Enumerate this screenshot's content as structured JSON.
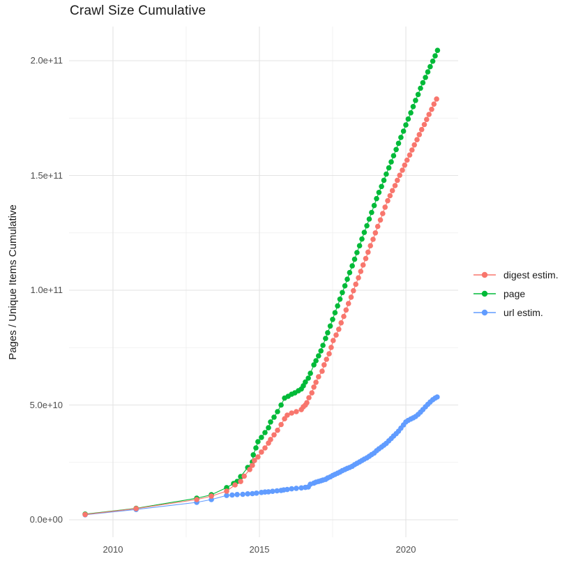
{
  "title": "Crawl Size Cumulative",
  "y_axis": {
    "title": "Pages / Unique Items Cumulative",
    "tick_labels": [
      "0.0e+00",
      "5.0e+10",
      "1.0e+11",
      "1.5e+11",
      "2.0e+11"
    ],
    "tick_values_billions": [
      0,
      50,
      100,
      150,
      200
    ]
  },
  "x_axis": {
    "tick_labels": [
      "2010",
      "2015",
      "2020"
    ],
    "tick_values": [
      2010,
      2015,
      2020
    ]
  },
  "legend": {
    "items": [
      {
        "label": "digest estim.",
        "color": "#F8766D",
        "series": "digest estim."
      },
      {
        "label": "page",
        "color": "#00BA38",
        "series": "page"
      },
      {
        "label": "url estim.",
        "color": "#619CFF",
        "series": "url estim."
      }
    ]
  },
  "chart_data": {
    "type": "line",
    "title": "Crawl Size Cumulative",
    "xlabel": "",
    "ylabel": "Pages / Unique Items Cumulative",
    "x_range": [
      2008.5,
      2021.8
    ],
    "y_range": [
      0,
      215000000000.0
    ],
    "value_scale": 1000000000.0,
    "grid": true,
    "legend_position": "right",
    "marker": "circle",
    "series": [
      {
        "name": "digest estim.",
        "color": "#F8766D",
        "points": [
          [
            2009.05,
            2.3
          ],
          [
            2010.79,
            4.9
          ],
          [
            2012.86,
            8.8
          ],
          [
            2013.36,
            10.3
          ],
          [
            2013.88,
            12.5
          ],
          [
            2014.17,
            15.2
          ],
          [
            2014.36,
            16.7
          ],
          [
            2014.48,
            19.0
          ],
          [
            2014.67,
            21.9
          ],
          [
            2014.76,
            23.7
          ],
          [
            2014.83,
            25.8
          ],
          [
            2014.95,
            27.4
          ],
          [
            2015.07,
            29.5
          ],
          [
            2015.19,
            31.3
          ],
          [
            2015.31,
            33.4
          ],
          [
            2015.38,
            35.0
          ],
          [
            2015.5,
            37.0
          ],
          [
            2015.62,
            39.0
          ],
          [
            2015.74,
            41.5
          ],
          [
            2015.86,
            44.0
          ],
          [
            2015.95,
            45.6
          ],
          [
            2016.1,
            46.5
          ],
          [
            2016.26,
            47.1
          ],
          [
            2016.43,
            48.0
          ],
          [
            2016.5,
            49.2
          ],
          [
            2016.57,
            50.0
          ],
          [
            2016.62,
            51.0
          ],
          [
            2016.69,
            53.2
          ],
          [
            2016.79,
            55.3
          ],
          [
            2016.86,
            57.8
          ],
          [
            2016.93,
            59.9
          ],
          [
            2017.02,
            62.3
          ],
          [
            2017.14,
            64.7
          ],
          [
            2017.21,
            67.5
          ],
          [
            2017.29,
            69.9
          ],
          [
            2017.38,
            72.3
          ],
          [
            2017.45,
            75.1
          ],
          [
            2017.52,
            78.1
          ],
          [
            2017.62,
            80.5
          ],
          [
            2017.71,
            83.0
          ],
          [
            2017.79,
            85.8
          ],
          [
            2017.88,
            88.6
          ],
          [
            2017.96,
            91.4
          ],
          [
            2018.04,
            94.2
          ],
          [
            2018.13,
            97.0
          ],
          [
            2018.21,
            99.8
          ],
          [
            2018.29,
            102.6
          ],
          [
            2018.38,
            105.4
          ],
          [
            2018.46,
            108.2
          ],
          [
            2018.54,
            111.0
          ],
          [
            2018.63,
            113.8
          ],
          [
            2018.71,
            116.6
          ],
          [
            2018.79,
            119.4
          ],
          [
            2018.88,
            122.2
          ],
          [
            2018.96,
            125.0
          ],
          [
            2019.04,
            127.8
          ],
          [
            2019.13,
            130.6
          ],
          [
            2019.21,
            133.4
          ],
          [
            2019.29,
            136.2
          ],
          [
            2019.38,
            139.0
          ],
          [
            2019.46,
            141.2
          ],
          [
            2019.54,
            143.4
          ],
          [
            2019.63,
            145.6
          ],
          [
            2019.71,
            147.9
          ],
          [
            2019.79,
            150.1
          ],
          [
            2019.88,
            152.3
          ],
          [
            2019.96,
            154.5
          ],
          [
            2020.04,
            156.7
          ],
          [
            2020.13,
            158.9
          ],
          [
            2020.21,
            161.1
          ],
          [
            2020.29,
            163.3
          ],
          [
            2020.38,
            165.6
          ],
          [
            2020.46,
            167.8
          ],
          [
            2020.54,
            170.0
          ],
          [
            2020.63,
            172.2
          ],
          [
            2020.71,
            174.4
          ],
          [
            2020.79,
            176.6
          ],
          [
            2020.88,
            178.8
          ],
          [
            2020.96,
            181.1
          ],
          [
            2021.05,
            183.3
          ]
        ]
      },
      {
        "name": "page",
        "color": "#00BA38",
        "points": [
          [
            2009.05,
            2.5
          ],
          [
            2010.79,
            5.0
          ],
          [
            2012.86,
            9.4
          ],
          [
            2013.36,
            10.9
          ],
          [
            2013.88,
            14.0
          ],
          [
            2014.12,
            15.8
          ],
          [
            2014.24,
            16.7
          ],
          [
            2014.36,
            18.8
          ],
          [
            2014.6,
            22.8
          ],
          [
            2014.76,
            25.2
          ],
          [
            2014.79,
            28.3
          ],
          [
            2014.88,
            31.3
          ],
          [
            2014.95,
            34.0
          ],
          [
            2015.07,
            35.9
          ],
          [
            2015.19,
            38.0
          ],
          [
            2015.31,
            40.1
          ],
          [
            2015.38,
            42.6
          ],
          [
            2015.5,
            44.7
          ],
          [
            2015.62,
            47.1
          ],
          [
            2015.74,
            50.0
          ],
          [
            2015.86,
            53.0
          ],
          [
            2015.98,
            53.8
          ],
          [
            2016.1,
            54.7
          ],
          [
            2016.21,
            55.3
          ],
          [
            2016.33,
            56.2
          ],
          [
            2016.43,
            57.0
          ],
          [
            2016.5,
            58.4
          ],
          [
            2016.57,
            60.0
          ],
          [
            2016.67,
            61.7
          ],
          [
            2016.74,
            63.8
          ],
          [
            2016.86,
            67.5
          ],
          [
            2016.93,
            69.3
          ],
          [
            2017.02,
            71.4
          ],
          [
            2017.1,
            73.6
          ],
          [
            2017.17,
            76.0
          ],
          [
            2017.26,
            79.0
          ],
          [
            2017.33,
            81.5
          ],
          [
            2017.42,
            84.4
          ],
          [
            2017.5,
            87.3
          ],
          [
            2017.58,
            90.2
          ],
          [
            2017.67,
            93.2
          ],
          [
            2017.75,
            96.1
          ],
          [
            2017.83,
            99.0
          ],
          [
            2017.92,
            101.9
          ],
          [
            2018.0,
            104.8
          ],
          [
            2018.08,
            107.7
          ],
          [
            2018.17,
            110.6
          ],
          [
            2018.25,
            113.5
          ],
          [
            2018.33,
            116.4
          ],
          [
            2018.42,
            119.4
          ],
          [
            2018.5,
            122.3
          ],
          [
            2018.58,
            125.2
          ],
          [
            2018.67,
            128.1
          ],
          [
            2018.75,
            131.0
          ],
          [
            2018.83,
            133.9
          ],
          [
            2018.92,
            136.9
          ],
          [
            2019.0,
            139.9
          ],
          [
            2019.08,
            142.6
          ],
          [
            2019.17,
            145.2
          ],
          [
            2019.25,
            147.9
          ],
          [
            2019.33,
            150.6
          ],
          [
            2019.42,
            153.3
          ],
          [
            2019.5,
            155.9
          ],
          [
            2019.58,
            158.6
          ],
          [
            2019.67,
            161.3
          ],
          [
            2019.75,
            164.0
          ],
          [
            2019.83,
            166.6
          ],
          [
            2019.92,
            169.3
          ],
          [
            2020.0,
            172.0
          ],
          [
            2020.08,
            174.6
          ],
          [
            2020.17,
            177.3
          ],
          [
            2020.25,
            180.0
          ],
          [
            2020.33,
            182.7
          ],
          [
            2020.42,
            185.3
          ],
          [
            2020.5,
            188.0
          ],
          [
            2020.58,
            190.4
          ],
          [
            2020.67,
            192.7
          ],
          [
            2020.75,
            195.1
          ],
          [
            2020.83,
            197.4
          ],
          [
            2020.92,
            199.8
          ],
          [
            2021.0,
            202.1
          ],
          [
            2021.08,
            204.5
          ]
        ]
      },
      {
        "name": "url estim.",
        "color": "#619CFF",
        "points": [
          [
            2009.05,
            2.2
          ],
          [
            2010.79,
            4.5
          ],
          [
            2012.86,
            7.6
          ],
          [
            2013.36,
            8.8
          ],
          [
            2013.88,
            10.6
          ],
          [
            2014.07,
            10.8
          ],
          [
            2014.24,
            11.0
          ],
          [
            2014.43,
            11.1
          ],
          [
            2014.6,
            11.3
          ],
          [
            2014.76,
            11.4
          ],
          [
            2014.9,
            11.6
          ],
          [
            2015.07,
            11.9
          ],
          [
            2015.19,
            12.1
          ],
          [
            2015.31,
            12.2
          ],
          [
            2015.45,
            12.4
          ],
          [
            2015.6,
            12.6
          ],
          [
            2015.74,
            12.8
          ],
          [
            2015.83,
            13.0
          ],
          [
            2015.95,
            13.2
          ],
          [
            2016.1,
            13.5
          ],
          [
            2016.26,
            13.7
          ],
          [
            2016.43,
            13.9
          ],
          [
            2016.57,
            14.1
          ],
          [
            2016.67,
            14.3
          ],
          [
            2016.74,
            15.5
          ],
          [
            2016.86,
            16.0
          ],
          [
            2016.93,
            16.4
          ],
          [
            2017.02,
            16.7
          ],
          [
            2017.1,
            17.0
          ],
          [
            2017.17,
            17.3
          ],
          [
            2017.26,
            17.6
          ],
          [
            2017.33,
            18.2
          ],
          [
            2017.42,
            18.7
          ],
          [
            2017.5,
            19.3
          ],
          [
            2017.58,
            19.8
          ],
          [
            2017.67,
            20.3
          ],
          [
            2017.75,
            20.8
          ],
          [
            2017.83,
            21.4
          ],
          [
            2017.92,
            21.9
          ],
          [
            2018.0,
            22.4
          ],
          [
            2018.08,
            22.8
          ],
          [
            2018.17,
            23.3
          ],
          [
            2018.25,
            24.0
          ],
          [
            2018.33,
            24.6
          ],
          [
            2018.42,
            25.2
          ],
          [
            2018.5,
            25.8
          ],
          [
            2018.58,
            26.4
          ],
          [
            2018.67,
            27.0
          ],
          [
            2018.75,
            27.7
          ],
          [
            2018.83,
            28.4
          ],
          [
            2018.92,
            29.1
          ],
          [
            2019.0,
            30.1
          ],
          [
            2019.08,
            30.9
          ],
          [
            2019.17,
            31.7
          ],
          [
            2019.25,
            32.5
          ],
          [
            2019.33,
            33.3
          ],
          [
            2019.42,
            34.4
          ],
          [
            2019.5,
            35.4
          ],
          [
            2019.58,
            36.5
          ],
          [
            2019.67,
            37.5
          ],
          [
            2019.75,
            38.6
          ],
          [
            2019.83,
            39.9
          ],
          [
            2019.92,
            41.3
          ],
          [
            2020.0,
            42.6
          ],
          [
            2020.08,
            43.3
          ],
          [
            2020.17,
            43.9
          ],
          [
            2020.25,
            44.4
          ],
          [
            2020.33,
            45.0
          ],
          [
            2020.42,
            45.9
          ],
          [
            2020.5,
            46.9
          ],
          [
            2020.58,
            48.0
          ],
          [
            2020.67,
            49.2
          ],
          [
            2020.75,
            50.3
          ],
          [
            2020.83,
            51.3
          ],
          [
            2020.92,
            52.3
          ],
          [
            2021.0,
            53.0
          ],
          [
            2021.07,
            53.5
          ]
        ]
      }
    ],
    "style": {
      "grid_major_color": "#E3E3E3",
      "grid_minor_color": "#EDEDED",
      "background": "#FFFFFF",
      "tick_label_color": "#4d4d4d",
      "text_color": "#1a1a1a"
    }
  }
}
